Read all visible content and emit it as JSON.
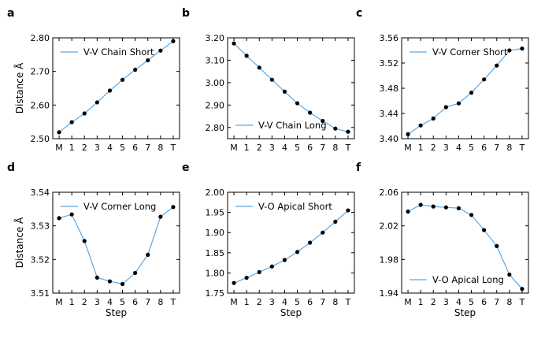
{
  "chart_data": [
    {
      "panel": "a",
      "type": "line",
      "legend": "V-V Chain Short",
      "legend_position": "upper left",
      "x": [
        "M",
        "1",
        "2",
        "3",
        "4",
        "5",
        "6",
        "7",
        "8",
        "T"
      ],
      "values": [
        2.519,
        2.549,
        2.575,
        2.608,
        2.643,
        2.675,
        2.705,
        2.733,
        2.762,
        2.79
      ],
      "ylim": [
        2.5,
        2.8
      ],
      "yticks": [
        "2.50",
        "2.60",
        "2.70",
        "2.80"
      ],
      "ylabel": "Distance Å",
      "xlabel": ""
    },
    {
      "panel": "b",
      "type": "line",
      "legend": "V-V Chain Long",
      "legend_position": "lower left",
      "x": [
        "M",
        "1",
        "2",
        "3",
        "4",
        "5",
        "6",
        "7",
        "8",
        "T"
      ],
      "values": [
        3.175,
        3.12,
        3.067,
        3.013,
        2.96,
        2.908,
        2.866,
        2.829,
        2.795,
        2.781
      ],
      "ylim": [
        2.75,
        3.2
      ],
      "yticks": [
        "2.80",
        "2.90",
        "3.00",
        "3.10",
        "3.20"
      ],
      "ylabel": "",
      "xlabel": ""
    },
    {
      "panel": "c",
      "type": "line",
      "legend": "V-V Corner Short",
      "legend_position": "upper left",
      "x": [
        "M",
        "1",
        "2",
        "3",
        "4",
        "5",
        "6",
        "7",
        "8",
        "T"
      ],
      "values": [
        3.407,
        3.421,
        3.432,
        3.45,
        3.456,
        3.473,
        3.494,
        3.516,
        3.54,
        3.543
      ],
      "ylim": [
        3.4,
        3.56
      ],
      "yticks": [
        "3.40",
        "3.44",
        "3.48",
        "3.52",
        "3.56"
      ],
      "ylabel": "",
      "xlabel": ""
    },
    {
      "panel": "d",
      "type": "line",
      "legend": "V-V Corner Long",
      "legend_position": "upper left",
      "x": [
        "M",
        "1",
        "2",
        "3",
        "4",
        "5",
        "6",
        "7",
        "8",
        "T"
      ],
      "values": [
        3.5323,
        3.5334,
        3.5255,
        3.5146,
        3.5135,
        3.5127,
        3.516,
        3.5214,
        3.5327,
        3.5356
      ],
      "ylim": [
        3.51,
        3.54
      ],
      "yticks": [
        "3.51",
        "3.52",
        "3.53",
        "3.54"
      ],
      "ylabel": "Distance Å",
      "xlabel": "Step"
    },
    {
      "panel": "e",
      "type": "line",
      "legend": "V-O Apical Short",
      "legend_position": "upper left",
      "x": [
        "M",
        "1",
        "2",
        "3",
        "4",
        "5",
        "6",
        "7",
        "8",
        "T"
      ],
      "values": [
        1.775,
        1.788,
        1.802,
        1.816,
        1.832,
        1.852,
        1.875,
        1.9,
        1.927,
        1.955
      ],
      "ylim": [
        1.75,
        2.0
      ],
      "yticks": [
        "1.75",
        "1.80",
        "1.85",
        "1.90",
        "1.95",
        "2.00"
      ],
      "ylabel": "",
      "xlabel": "Step"
    },
    {
      "panel": "f",
      "type": "line",
      "legend": "V-O Apical Long",
      "legend_position": "lower left",
      "x": [
        "M",
        "1",
        "2",
        "3",
        "4",
        "5",
        "6",
        "7",
        "8",
        "T"
      ],
      "values": [
        2.037,
        2.045,
        2.043,
        2.042,
        2.041,
        2.033,
        2.015,
        1.996,
        1.962,
        1.945
      ],
      "ylim": [
        1.94,
        2.06
      ],
      "yticks": [
        "1.94",
        "1.98",
        "2.02",
        "2.06"
      ],
      "ylabel": "",
      "xlabel": "Step"
    }
  ],
  "colors": {
    "line": "#5aa8e6",
    "marker": "#000000",
    "axes": "#000000"
  }
}
